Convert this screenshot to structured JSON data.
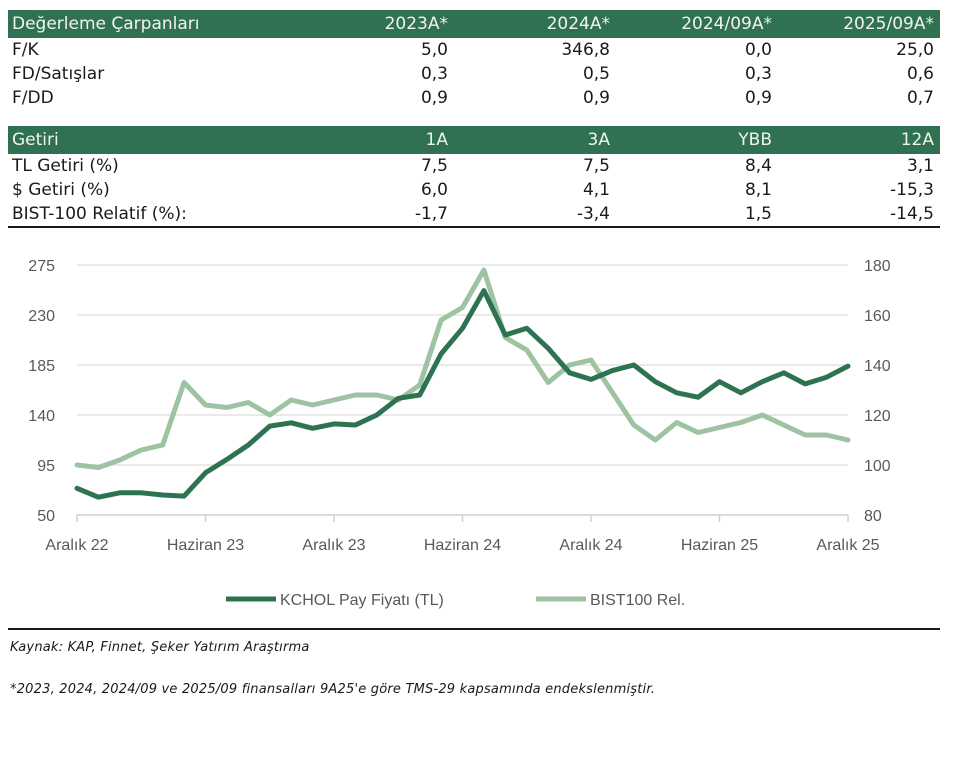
{
  "valuation_table": {
    "title": "Değerleme Çarpanları",
    "columns": [
      "2023A*",
      "2024A*",
      "2024/09A*",
      "2025/09A*"
    ],
    "rows": [
      {
        "label": "F/K",
        "values": [
          "5,0",
          "346,8",
          "0,0",
          "25,0"
        ]
      },
      {
        "label": "FD/Satışlar",
        "values": [
          "0,3",
          "0,5",
          "0,3",
          "0,6"
        ]
      },
      {
        "label": "F/DD",
        "values": [
          "0,9",
          "0,9",
          "0,9",
          "0,7"
        ]
      }
    ]
  },
  "returns_table": {
    "title": "Getiri",
    "columns": [
      "1A",
      "3A",
      "YBB",
      "12A"
    ],
    "rows": [
      {
        "label": "TL Getiri (%)",
        "values": [
          "7,5",
          "7,5",
          "8,4",
          "3,1"
        ]
      },
      {
        "label": "$ Getiri (%)",
        "values": [
          "6,0",
          "4,1",
          "8,1",
          "-15,3"
        ]
      },
      {
        "label": "BIST-100 Relatif (%):",
        "values": [
          "-1,7",
          "-3,4",
          "1,5",
          "-14,5"
        ]
      }
    ]
  },
  "colors": {
    "header_bg": "#2f7150",
    "series_dark": "#2e7351",
    "series_light": "#9dc3a3",
    "grid": "#e3e3e3",
    "axis_text": "#595959"
  },
  "chart_data": {
    "type": "line",
    "title": "",
    "xlabel": "",
    "ylabel": "",
    "x_tick_labels": [
      "Aralık 22",
      "Haziran 23",
      "Aralık 23",
      "Haziran 24",
      "Aralık 24",
      "Haziran 25",
      "Aralık 25"
    ],
    "y_left": {
      "ticks": [
        50,
        95,
        140,
        185,
        230,
        275
      ],
      "range": [
        50,
        275
      ]
    },
    "y_right": {
      "ticks": [
        80,
        100,
        120,
        140,
        160,
        180
      ],
      "range": [
        80,
        180
      ]
    },
    "grid": true,
    "legend_position": "bottom",
    "x": [
      "2022-12",
      "2023-01",
      "2023-02",
      "2023-03",
      "2023-04",
      "2023-05",
      "2023-06",
      "2023-07",
      "2023-08",
      "2023-09",
      "2023-10",
      "2023-11",
      "2023-12",
      "2024-01",
      "2024-02",
      "2024-03",
      "2024-04",
      "2024-05",
      "2024-06",
      "2024-07",
      "2024-08",
      "2024-09",
      "2024-10",
      "2024-11",
      "2024-12",
      "2025-01",
      "2025-02",
      "2025-03",
      "2025-04",
      "2025-05",
      "2025-06",
      "2025-07",
      "2025-08",
      "2025-09",
      "2025-10",
      "2025-11",
      "2025-12"
    ],
    "series": [
      {
        "name": "KCHOL Pay Fiyatı (TL)",
        "axis": "left",
        "values": [
          74,
          66,
          70,
          70,
          68,
          67,
          88,
          100,
          113,
          130,
          133,
          128,
          132,
          131,
          140,
          155,
          158,
          195,
          218,
          252,
          212,
          218,
          200,
          178,
          172,
          180,
          185,
          170,
          160,
          156,
          170,
          160,
          170,
          178,
          168,
          174,
          184
        ]
      },
      {
        "name": "BIST100 Rel.",
        "axis": "right",
        "values": [
          100,
          99,
          102,
          106,
          108,
          133,
          124,
          123,
          125,
          120,
          126,
          124,
          126,
          128,
          128,
          126,
          132,
          158,
          163,
          178,
          151,
          146,
          133,
          140,
          142,
          129,
          116,
          110,
          117,
          113,
          115,
          117,
          120,
          116,
          112,
          112,
          110
        ]
      }
    ]
  },
  "legend": {
    "items": [
      "KCHOL Pay Fiyatı (TL)",
      "BIST100 Rel."
    ]
  },
  "source": "Kaynak: KAP, Finnet, Şeker Yatırım Araştırma",
  "footnote": "*2023, 2024, 2024/09 ve 2025/09 finansalları 9A25'e göre TMS-29 kapsamında endekslenmiştir."
}
